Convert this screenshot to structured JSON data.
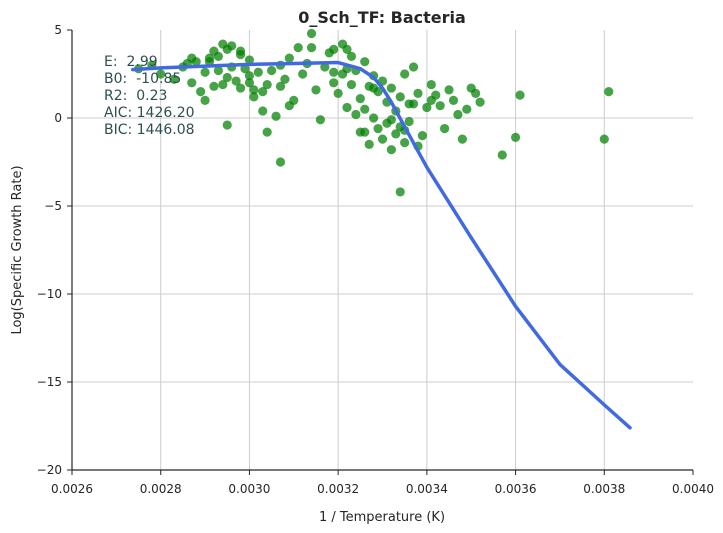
{
  "chart_data": {
    "type": "scatter",
    "title": "0_Sch_TF: Bacteria",
    "xlabel": "1 / Temperature (K)",
    "ylabel": "Log(Specific Growth Rate)",
    "xlim": [
      0.0026,
      0.004
    ],
    "ylim": [
      -20,
      5
    ],
    "x_ticks": [
      "0.0026",
      "0.0028",
      "0.0030",
      "0.0032",
      "0.0034",
      "0.0036",
      "0.0038",
      "0.0040"
    ],
    "y_ticks": [
      "5",
      "0",
      "−5",
      "−10",
      "−15",
      "−20"
    ],
    "grid": true,
    "colors": {
      "points": "#008000",
      "fit": "#4169e1",
      "stats": "#2f4f4f",
      "grid": "#cccccc"
    },
    "stats": [
      "E:  2.99",
      "B0:  -10.85",
      "R2:  0.23",
      "AIC: 1426.20",
      "BIC: 1446.08"
    ],
    "fit_line": {
      "x": [
        0.002737,
        0.0028,
        0.0029,
        0.003,
        0.0031,
        0.0032,
        0.00325,
        0.00328,
        0.0033,
        0.00332,
        0.00335,
        0.0034,
        0.0035,
        0.0036,
        0.0037,
        0.0038,
        0.003858
      ],
      "y": [
        2.75,
        2.85,
        2.95,
        3.05,
        3.1,
        3.15,
        2.8,
        2.3,
        1.7,
        0.9,
        -0.5,
        -2.8,
        -6.8,
        -10.7,
        -14.0,
        -16.3,
        -17.6
      ]
    },
    "points": {
      "x": [
        0.00275,
        0.00278,
        0.0028,
        0.00283,
        0.00285,
        0.00286,
        0.00287,
        0.00288,
        0.00289,
        0.0029,
        0.0029,
        0.00291,
        0.00292,
        0.00292,
        0.00293,
        0.00293,
        0.00294,
        0.00294,
        0.00295,
        0.00295,
        0.00296,
        0.00297,
        0.00298,
        0.00298,
        0.00299,
        0.003,
        0.003,
        0.00301,
        0.00302,
        0.00303,
        0.00304,
        0.00305,
        0.00306,
        0.00307,
        0.00307,
        0.00308,
        0.00309,
        0.0031,
        0.00311,
        0.00312,
        0.00313,
        0.00314,
        0.00315,
        0.00316,
        0.00317,
        0.00318,
        0.00319,
        0.00319,
        0.0032,
        0.00321,
        0.00321,
        0.00322,
        0.00322,
        0.00323,
        0.00323,
        0.00324,
        0.00324,
        0.00325,
        0.00325,
        0.00326,
        0.00326,
        0.00327,
        0.00327,
        0.00328,
        0.00328,
        0.00329,
        0.00329,
        0.0033,
        0.0033,
        0.00331,
        0.00331,
        0.00332,
        0.00332,
        0.00333,
        0.00333,
        0.00334,
        0.00334,
        0.00335,
        0.00335,
        0.00336,
        0.00336,
        0.00337,
        0.00338,
        0.00338,
        0.00339,
        0.0034,
        0.00341,
        0.00342,
        0.00343,
        0.00344,
        0.00345,
        0.00346,
        0.00347,
        0.00348,
        0.00349,
        0.0035,
        0.00351,
        0.00352,
        0.00357,
        0.0036,
        0.00361,
        0.0038,
        0.00381,
        0.00295,
        0.00307,
        0.00304,
        0.00314,
        0.00301,
        0.00309,
        0.00296,
        0.00291,
        0.003,
        0.00332,
        0.00322,
        0.00319,
        0.00337,
        0.00326,
        0.00341,
        0.00335,
        0.00328,
        0.00334,
        0.00303,
        0.00298,
        0.00287
      ],
      "y": [
        2.8,
        3.0,
        2.5,
        2.2,
        2.9,
        3.1,
        2.0,
        3.2,
        1.5,
        1.0,
        2.6,
        3.4,
        1.8,
        3.8,
        2.7,
        3.5,
        1.9,
        4.2,
        2.3,
        3.9,
        2.9,
        2.1,
        3.6,
        1.7,
        2.8,
        2.4,
        3.3,
        1.2,
        2.6,
        0.4,
        1.9,
        2.7,
        0.1,
        3.0,
        1.8,
        2.2,
        3.4,
        1.0,
        4.0,
        2.5,
        3.1,
        4.8,
        1.6,
        -0.1,
        2.9,
        3.7,
        2.0,
        3.9,
        1.4,
        4.2,
        2.5,
        2.8,
        0.6,
        1.9,
        3.5,
        0.2,
        2.7,
        1.1,
        -0.8,
        3.2,
        0.5,
        1.8,
        -1.5,
        2.4,
        0.0,
        1.5,
        -0.6,
        2.1,
        -1.2,
        0.9,
        -0.3,
        1.7,
        -1.8,
        0.4,
        -0.9,
        1.2,
        -0.5,
        2.5,
        -1.4,
        0.8,
        -0.2,
        2.9,
        -1.6,
        1.4,
        -1.0,
        0.6,
        1.9,
        1.3,
        0.7,
        -0.6,
        1.6,
        1.0,
        0.2,
        -1.2,
        0.5,
        1.7,
        1.4,
        0.9,
        -2.1,
        -1.1,
        1.3,
        -1.2,
        1.5,
        -0.4,
        -2.5,
        -0.8,
        4.0,
        1.6,
        0.7,
        4.1,
        3.2,
        2.0,
        -0.1,
        3.9,
        2.6,
        0.8,
        -0.8,
        1.0,
        -0.7,
        1.7,
        -4.2,
        1.5,
        3.8,
        3.4
      ],
      "color": "#008000"
    }
  }
}
